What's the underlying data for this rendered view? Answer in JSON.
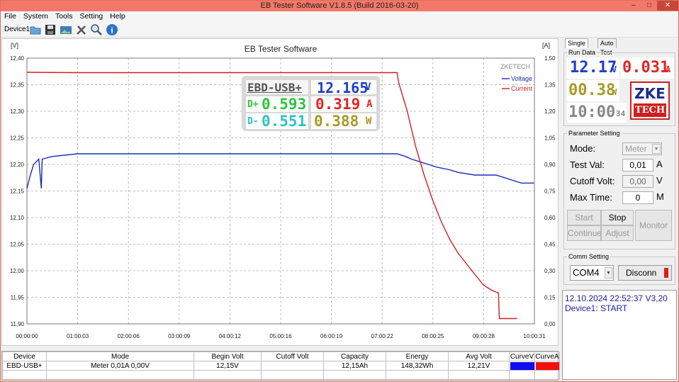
{
  "window": {
    "title": "EB Tester Software V1.8.5 (Build 2016-03-20)"
  },
  "menu": [
    "File",
    "System",
    "Tools",
    "Setting",
    "Help"
  ],
  "toolbar": {
    "device_label": "Device1"
  },
  "colors": {
    "voltage": "#1a2fb3",
    "current": "#d01f1f",
    "title_bar": "#f27969"
  },
  "chart_data": {
    "type": "line",
    "title": "EB Tester Software",
    "watermark": "ZKETECH",
    "y_left_unit": "[V]",
    "y_right_unit": "[A]",
    "ylim_left": [
      11.9,
      12.4
    ],
    "ylim_right": [
      0.0,
      1.5
    ],
    "y_left_ticks": [
      "12,40",
      "12,35",
      "12,30",
      "12,25",
      "12,20",
      "12,15",
      "12,10",
      "12,05",
      "12,00",
      "11,95",
      "11,90"
    ],
    "y_right_ticks": [
      "1,50",
      "1,35",
      "1,20",
      "1,05",
      "0,90",
      "0,75",
      "0,60",
      "0,45",
      "0,30",
      "0,15",
      "0,00"
    ],
    "x_ticks": [
      "00:00:00",
      "01:00:03",
      "02:00:06",
      "03:00:09",
      "04:00:12",
      "05:00:16",
      "06:00:19",
      "07:00:22",
      "08:00:25",
      "09:00:28",
      "10:00:31"
    ],
    "x_range_minutes": [
      0,
      600.5
    ],
    "grid": true,
    "legend_position": "top-right",
    "series": [
      {
        "name": "Voltage",
        "axis": "left",
        "points": [
          [
            0,
            12.155
          ],
          [
            4,
            12.18
          ],
          [
            8,
            12.2
          ],
          [
            14,
            12.21
          ],
          [
            17,
            12.155
          ],
          [
            18,
            12.21
          ],
          [
            30,
            12.215
          ],
          [
            60,
            12.22
          ],
          [
            120,
            12.22
          ],
          [
            180,
            12.22
          ],
          [
            240,
            12.22
          ],
          [
            300,
            12.22
          ],
          [
            360,
            12.22
          ],
          [
            420,
            12.22
          ],
          [
            438,
            12.22
          ],
          [
            448,
            12.215
          ],
          [
            455,
            12.21
          ],
          [
            465,
            12.205
          ],
          [
            475,
            12.2
          ],
          [
            485,
            12.195
          ],
          [
            500,
            12.19
          ],
          [
            510,
            12.185
          ],
          [
            530,
            12.18
          ],
          [
            545,
            12.18
          ],
          [
            555,
            12.18
          ],
          [
            565,
            12.175
          ],
          [
            575,
            12.17
          ],
          [
            585,
            12.165
          ],
          [
            600,
            12.165
          ]
        ]
      },
      {
        "name": "Current",
        "axis": "right",
        "points": [
          [
            0,
            1.42
          ],
          [
            60,
            1.418
          ],
          [
            120,
            1.418
          ],
          [
            180,
            1.418
          ],
          [
            240,
            1.418
          ],
          [
            300,
            1.418
          ],
          [
            360,
            1.418
          ],
          [
            420,
            1.418
          ],
          [
            438,
            1.418
          ],
          [
            440,
            1.36
          ],
          [
            450,
            1.2
          ],
          [
            460,
            1.0
          ],
          [
            470,
            0.84
          ],
          [
            480,
            0.7
          ],
          [
            490,
            0.58
          ],
          [
            500,
            0.48
          ],
          [
            510,
            0.4
          ],
          [
            520,
            0.34
          ],
          [
            530,
            0.28
          ],
          [
            540,
            0.22
          ],
          [
            550,
            0.19
          ],
          [
            555,
            0.18
          ],
          [
            558,
            0.175
          ],
          [
            559,
            0.03
          ],
          [
            580,
            0.03
          ]
        ]
      }
    ]
  },
  "meter_overlay": {
    "model": "EBD-USB+",
    "voltage": "12.165",
    "voltage_unit": "V",
    "current": "0.319",
    "current_unit": "A",
    "power": "0.388",
    "power_unit": "W",
    "dplus_label": "D+",
    "dplus": "0.593",
    "dminus_label": "D-",
    "dminus": "0.551"
  },
  "right_panel": {
    "tabs": [
      "Single Test",
      "Auto Test"
    ],
    "run_data": {
      "title": "Run Data",
      "voltage": "12.17",
      "voltage_unit": "V",
      "current": "0.031",
      "current_unit": "A",
      "power": "00.38",
      "power_unit": "W",
      "time": "10:00",
      "seconds": "34",
      "logo_top": "ZKE",
      "logo_bottom": "TECH"
    },
    "parameter": {
      "title": "Parameter Setting",
      "mode_label": "Mode:",
      "mode_value": "Meter",
      "test_val_label": "Test Val:",
      "test_val": "0,01",
      "test_val_unit": "A",
      "cutoff_label": "Cutoff Volt:",
      "cutoff": "0,00",
      "cutoff_unit": "V",
      "maxtime_label": "Max Time:",
      "maxtime": "0",
      "maxtime_unit": "M",
      "start": "Start",
      "stop": "Stop",
      "continue": "Continue",
      "adjust": "Adjust",
      "monitor": "Monitor"
    },
    "comm": {
      "title": "Comm Setting",
      "port": "COM4",
      "disconn": "Disconn"
    },
    "status_lines": [
      "12.10.2024 22:52:37  V3,20",
      "Device1: START"
    ]
  },
  "summary_table": {
    "headers": [
      "Device",
      "Mode",
      "Begin Volt",
      "Cutoff Volt",
      "Capacity",
      "Energy",
      "Avg Volt",
      "CurveV",
      "CurveA"
    ],
    "rows": [
      [
        "EBD-USB+",
        "Meter 0,01A  0,00V",
        "12,15V",
        "",
        "12,15Ah",
        "148,32Wh",
        "12,21V",
        "",
        ""
      ]
    ]
  }
}
